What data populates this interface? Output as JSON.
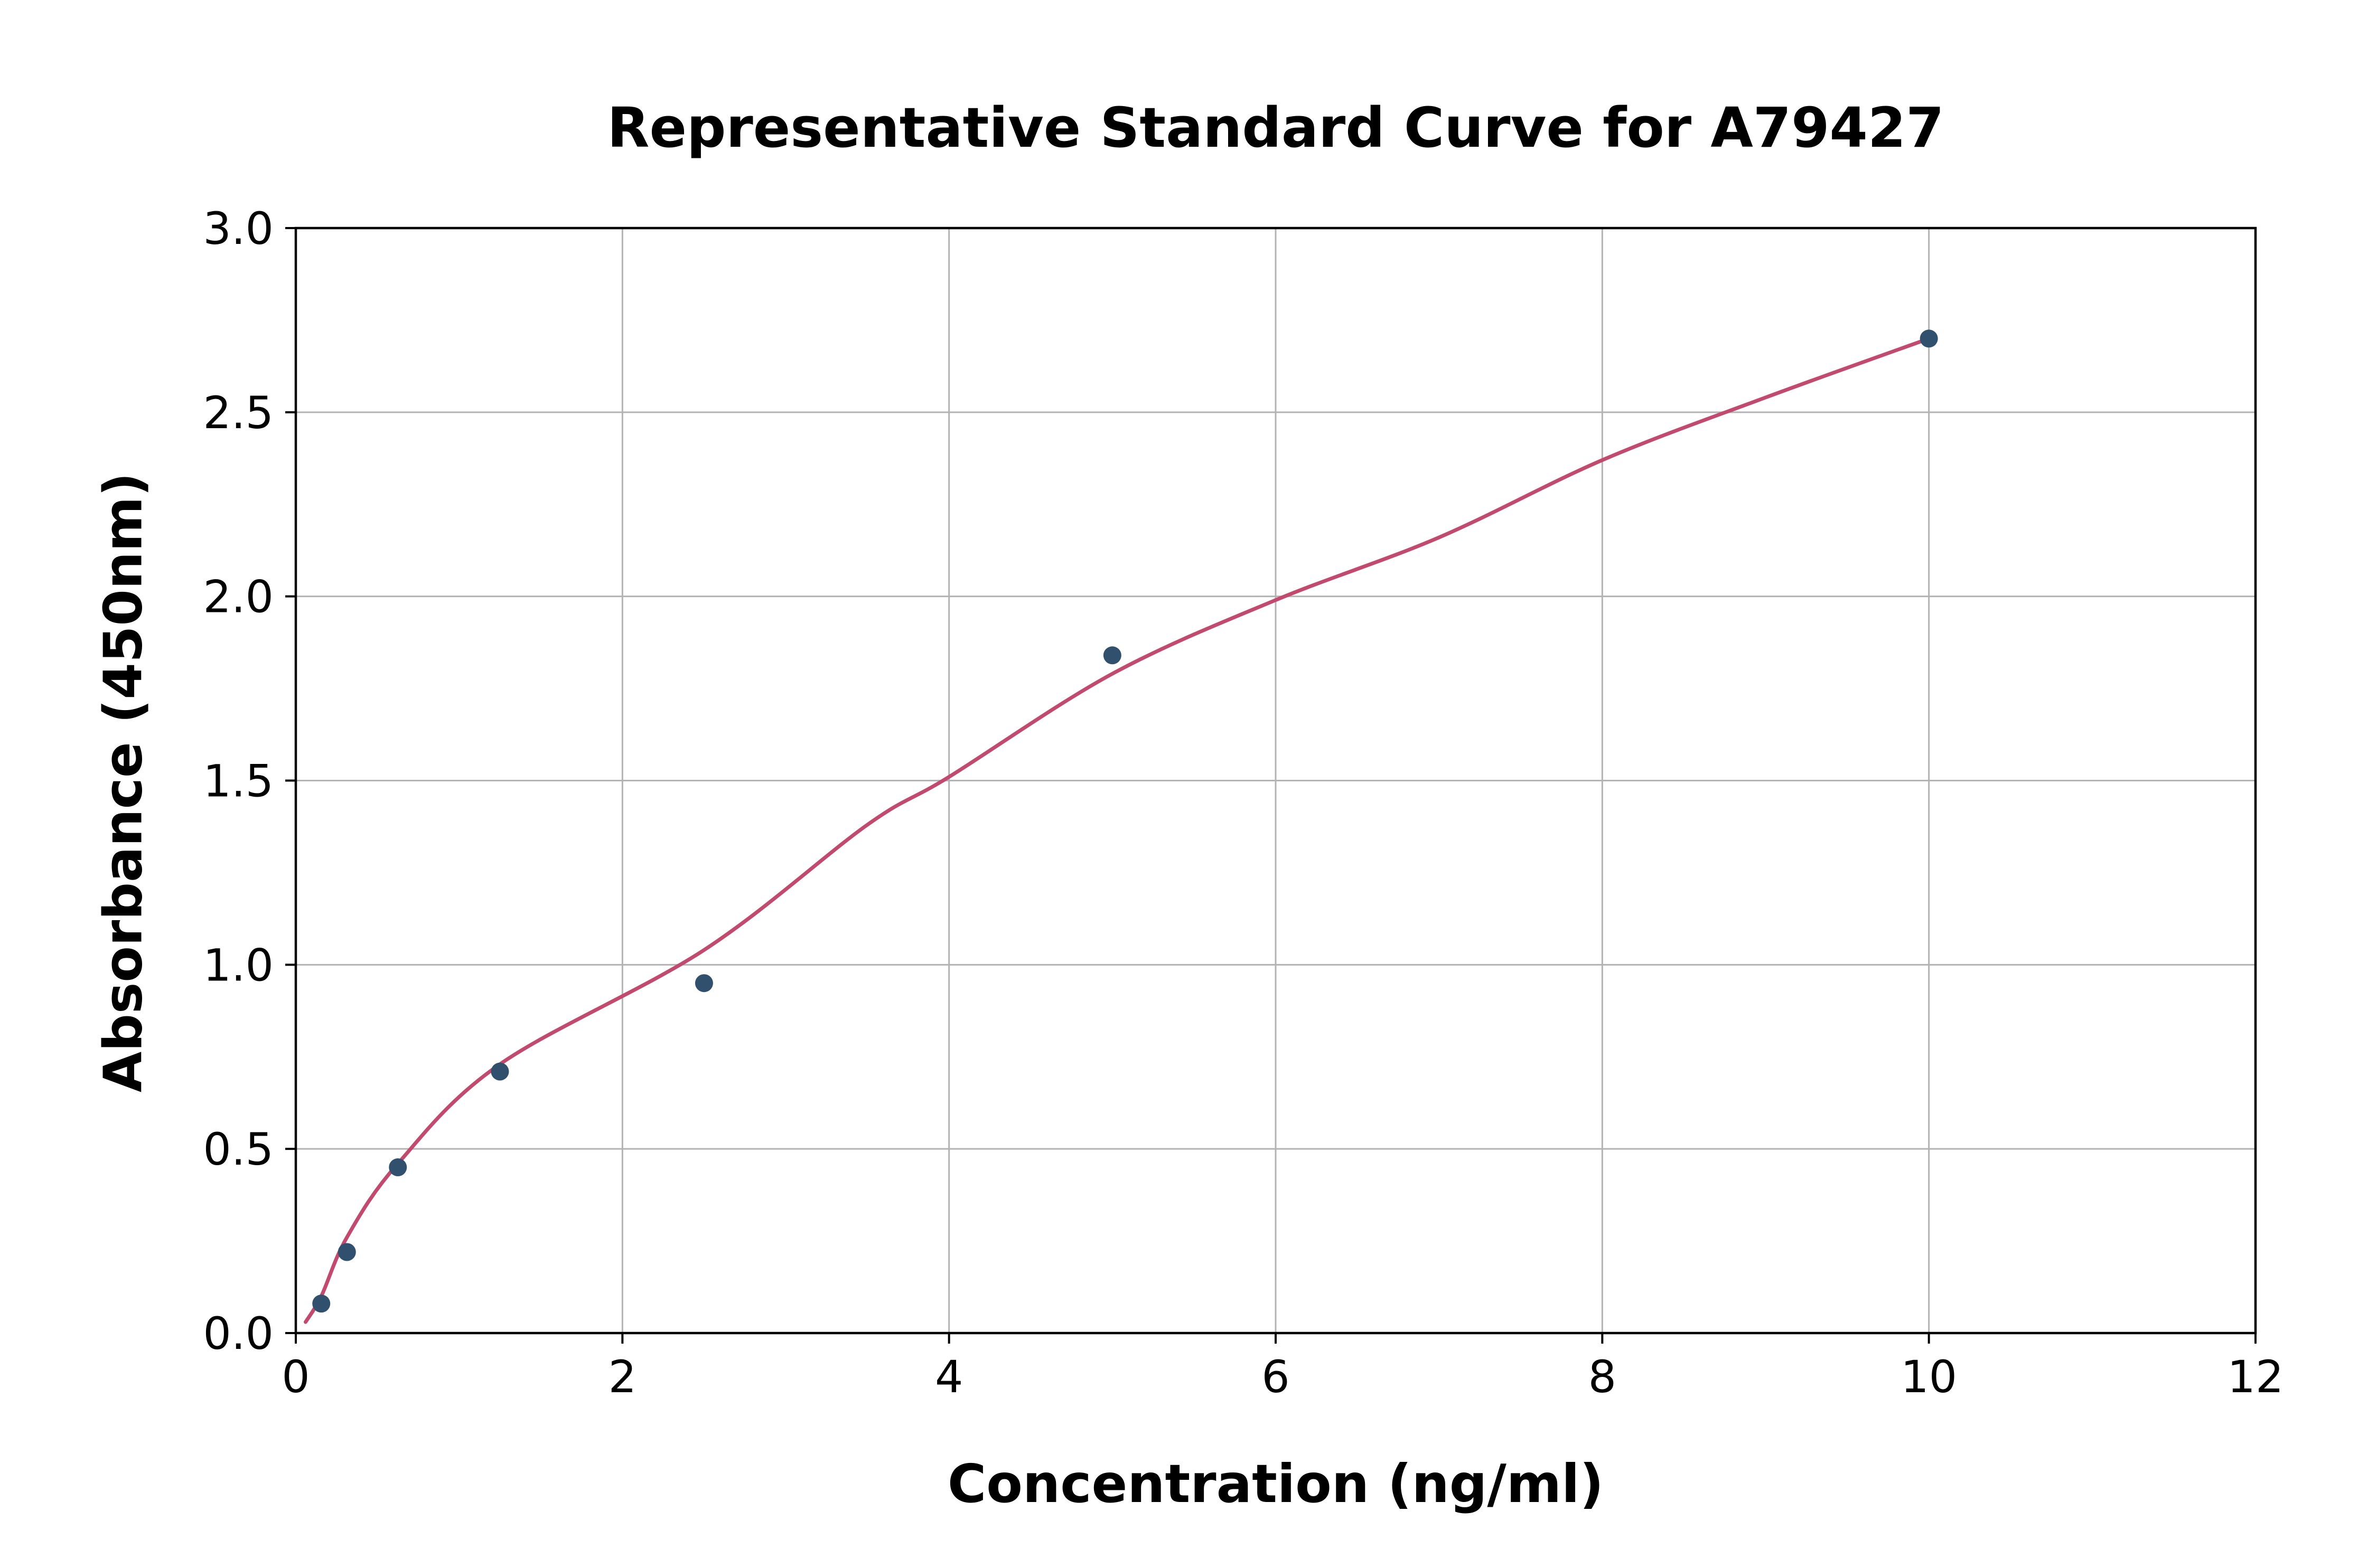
{
  "chart_data": {
    "type": "scatter",
    "title": "Representative Standard Curve for A79427",
    "xlabel": "Concentration (ng/ml)",
    "ylabel": "Absorbance (450nm)",
    "xlim": [
      0,
      12
    ],
    "ylim": [
      0,
      3
    ],
    "x_ticks": [
      0,
      2,
      4,
      6,
      8,
      10,
      12
    ],
    "x_tick_labels": [
      "0",
      "2",
      "4",
      "6",
      "8",
      "10",
      "12"
    ],
    "y_ticks": [
      0,
      0.5,
      1,
      1.5,
      2,
      2.5,
      3
    ],
    "y_tick_labels": [
      "0.0",
      "0.5",
      "1.0",
      "1.5",
      "2.0",
      "2.5",
      "3.0"
    ],
    "grid": true,
    "legend": "none",
    "points": [
      {
        "x": 0.156,
        "y": 0.08
      },
      {
        "x": 0.313,
        "y": 0.22
      },
      {
        "x": 0.625,
        "y": 0.45
      },
      {
        "x": 1.25,
        "y": 0.71
      },
      {
        "x": 2.5,
        "y": 0.95
      },
      {
        "x": 5,
        "y": 1.84
      },
      {
        "x": 10,
        "y": 2.7
      }
    ],
    "fit_curve_anchors": [
      [
        0.06,
        0.03
      ],
      [
        0.156,
        0.1
      ],
      [
        0.313,
        0.26
      ],
      [
        0.625,
        0.46
      ],
      [
        1.25,
        0.73
      ],
      [
        2.5,
        1.04
      ],
      [
        3.5,
        1.38
      ],
      [
        4,
        1.51
      ],
      [
        5,
        1.79
      ],
      [
        6,
        1.99
      ],
      [
        7,
        2.16
      ],
      [
        8,
        2.37
      ],
      [
        9,
        2.54
      ],
      [
        10,
        2.7
      ]
    ],
    "colors": {
      "curve": "#c14a6e",
      "points": "#31506e",
      "grid": "#b3b3b3",
      "axis": "#000000",
      "background": "#ffffff"
    }
  }
}
